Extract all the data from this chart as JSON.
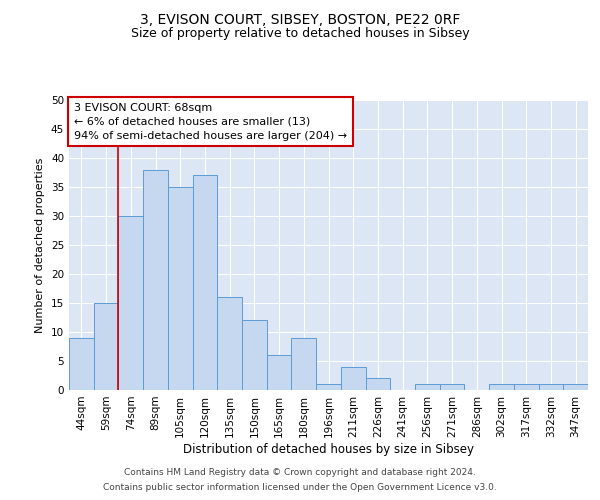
{
  "title1": "3, EVISON COURT, SIBSEY, BOSTON, PE22 0RF",
  "title2": "Size of property relative to detached houses in Sibsey",
  "xlabel": "Distribution of detached houses by size in Sibsey",
  "ylabel": "Number of detached properties",
  "categories": [
    "44sqm",
    "59sqm",
    "74sqm",
    "89sqm",
    "105sqm",
    "120sqm",
    "135sqm",
    "150sqm",
    "165sqm",
    "180sqm",
    "196sqm",
    "211sqm",
    "226sqm",
    "241sqm",
    "256sqm",
    "271sqm",
    "286sqm",
    "302sqm",
    "317sqm",
    "332sqm",
    "347sqm"
  ],
  "values": [
    9,
    15,
    30,
    38,
    35,
    37,
    16,
    12,
    6,
    9,
    1,
    4,
    2,
    0,
    1,
    1,
    0,
    1,
    1,
    1,
    1
  ],
  "bar_color": "#c5d8f0",
  "bar_edge_color": "#5b9bd5",
  "background_color": "#dce6f5",
  "annotation_text": "3 EVISON COURT: 68sqm\n← 6% of detached houses are smaller (13)\n94% of semi-detached houses are larger (204) →",
  "annotation_box_color": "#ffffff",
  "annotation_box_edge": "#cc0000",
  "vline_color": "#cc0000",
  "vline_x_index": 1,
  "ylim": [
    0,
    50
  ],
  "yticks": [
    0,
    5,
    10,
    15,
    20,
    25,
    30,
    35,
    40,
    45,
    50
  ],
  "footer1": "Contains HM Land Registry data © Crown copyright and database right 2024.",
  "footer2": "Contains public sector information licensed under the Open Government Licence v3.0.",
  "title1_fontsize": 10,
  "title2_fontsize": 9,
  "xlabel_fontsize": 8.5,
  "ylabel_fontsize": 8,
  "tick_fontsize": 7.5,
  "annotation_fontsize": 8,
  "footer_fontsize": 6.5
}
